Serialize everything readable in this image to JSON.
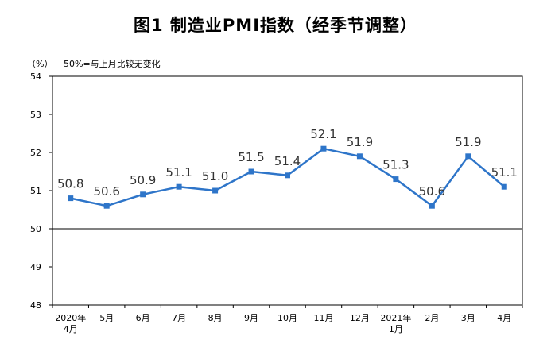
{
  "chart_data": {
    "type": "line",
    "title": "图1  制造业PMI指数（经季节调整）",
    "y_unit": "（%）",
    "note": "50%=与上月比较无变化",
    "categories": [
      [
        "2020年",
        "4月"
      ],
      [
        "5月"
      ],
      [
        "6月"
      ],
      [
        "7月"
      ],
      [
        "8月"
      ],
      [
        "9月"
      ],
      [
        "10月"
      ],
      [
        "11月"
      ],
      [
        "12月"
      ],
      [
        "2021年",
        "1月"
      ],
      [
        "2月"
      ],
      [
        "3月"
      ],
      [
        "4月"
      ]
    ],
    "series": [
      {
        "values": [
          50.8,
          50.6,
          50.9,
          51.1,
          51.0,
          51.5,
          51.4,
          52.1,
          51.9,
          51.3,
          50.6,
          51.9,
          51.1
        ]
      }
    ],
    "data_labels": [
      "50.8",
      "50.6",
      "50.9",
      "51.1",
      "51.0",
      "51.5",
      "51.4",
      "52.1",
      "51.9",
      "51.3",
      "50.6",
      "51.9",
      "51.1"
    ],
    "ylim": [
      48,
      54
    ],
    "yticks": [
      48,
      49,
      50,
      51,
      52,
      53,
      54
    ],
    "reference_line": 50,
    "grid": false,
    "line_color": "#2e75c9",
    "marker": "square"
  }
}
